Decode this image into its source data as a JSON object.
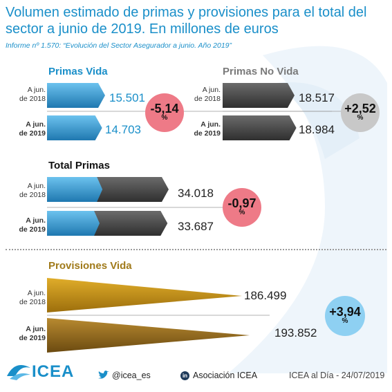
{
  "title": "Volumen estimado de primas y provisiones para el total del sector a junio de 2019. En millones de euros",
  "subtitle": "Informe nº 1.570: “Evolución del Sector Asegurador a junio. Año 2019”",
  "colors": {
    "blue": "#1a8fc9",
    "grey": "#7a7a7a",
    "gold": "#b8860b",
    "red_circle": "#ee7a87",
    "grey_circle": "#c8c8c8",
    "blue_circle": "#8ed0f2"
  },
  "chart_data": [
    {
      "type": "bar",
      "title": "Primas Vida",
      "categories": [
        "A jun. de 2018",
        "A jun. de 2019"
      ],
      "values": [
        15501,
        14703
      ],
      "value_labels": [
        "15.501",
        "14.703"
      ],
      "change": {
        "value": "-5,14",
        "unit": "%"
      }
    },
    {
      "type": "bar",
      "title": "Primas No Vida",
      "categories": [
        "A jun. de 2018",
        "A jun. de 2019"
      ],
      "values": [
        18517,
        18984
      ],
      "value_labels": [
        "18.517",
        "18.984"
      ],
      "change": {
        "value": "+2,52",
        "unit": "%"
      }
    },
    {
      "type": "bar",
      "title": "Total Primas",
      "categories": [
        "A jun. de 2018",
        "A jun. de 2019"
      ],
      "values": [
        34018,
        33687
      ],
      "value_labels": [
        "34.018",
        "33.687"
      ],
      "change": {
        "value": "-0,97",
        "unit": "%"
      }
    },
    {
      "type": "bar",
      "title": "Provisiones Vida",
      "categories": [
        "A jun. de 2018",
        "A jun. de 2019"
      ],
      "values": [
        186499,
        193852
      ],
      "value_labels": [
        "186.499",
        "193.852"
      ],
      "change": {
        "value": "+3,94",
        "unit": "%"
      }
    }
  ],
  "row_labels": {
    "line1": "A jun.",
    "line2_2018": "de 2018",
    "line2_2019": "de 2019"
  },
  "footer": {
    "logo_text": "ICEA",
    "twitter": "@icea_es",
    "linkedin": "Asociación ICEA",
    "source": "ICEA al Día - 24/07/2019"
  }
}
